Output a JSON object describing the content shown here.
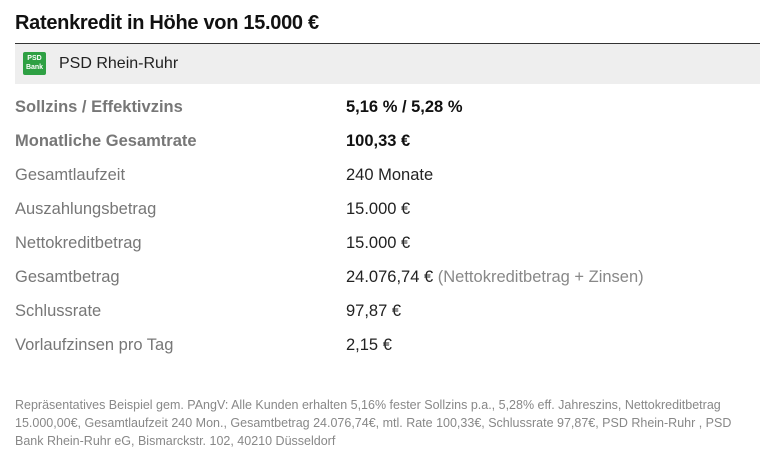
{
  "header": {
    "title": "Ratenkredit in Höhe von 15.000 €"
  },
  "bank": {
    "logo": [
      "PSD",
      "Bank"
    ],
    "name": "PSD Rhein-Ruhr"
  },
  "table": {
    "rows": [
      {
        "label": "Sollzins / Effektivzins",
        "value": "5,16 % / 5,28 %",
        "bold": true
      },
      {
        "label": "Monatliche Gesamtrate",
        "value": "100,33 €",
        "bold": true
      },
      {
        "label": "Gesamtlaufzeit",
        "value": "240 Monate"
      },
      {
        "label": "Auszahlungsbetrag",
        "value": "15.000 €"
      },
      {
        "label": "Nettokreditbetrag",
        "value": "15.000 €"
      },
      {
        "label": "Gesamtbetrag",
        "value": "24.076,74 €",
        "note": "(Nettokreditbetrag + Zinsen)"
      },
      {
        "label": "Schlussrate",
        "value": "97,87 €"
      },
      {
        "label": "Vorlaufzinsen pro Tag",
        "value": "2,15 €"
      }
    ]
  },
  "footnote": "Repräsentatives Beispiel gem. PAngV: Alle Kunden erhalten 5,16% fester Sollzins p.a., 5,28% eff. Jahreszins, Nettokreditbetrag 15.000,00€, Gesamtlaufzeit 240 Mon., Gesamtbetrag 24.076,74€, mtl. Rate 100,33€, Schlussrate 97,87€, PSD Rhein-Ruhr , PSD Bank Rhein-Ruhr eG, Bismarckstr. 102, 40210 Düsseldorf"
}
